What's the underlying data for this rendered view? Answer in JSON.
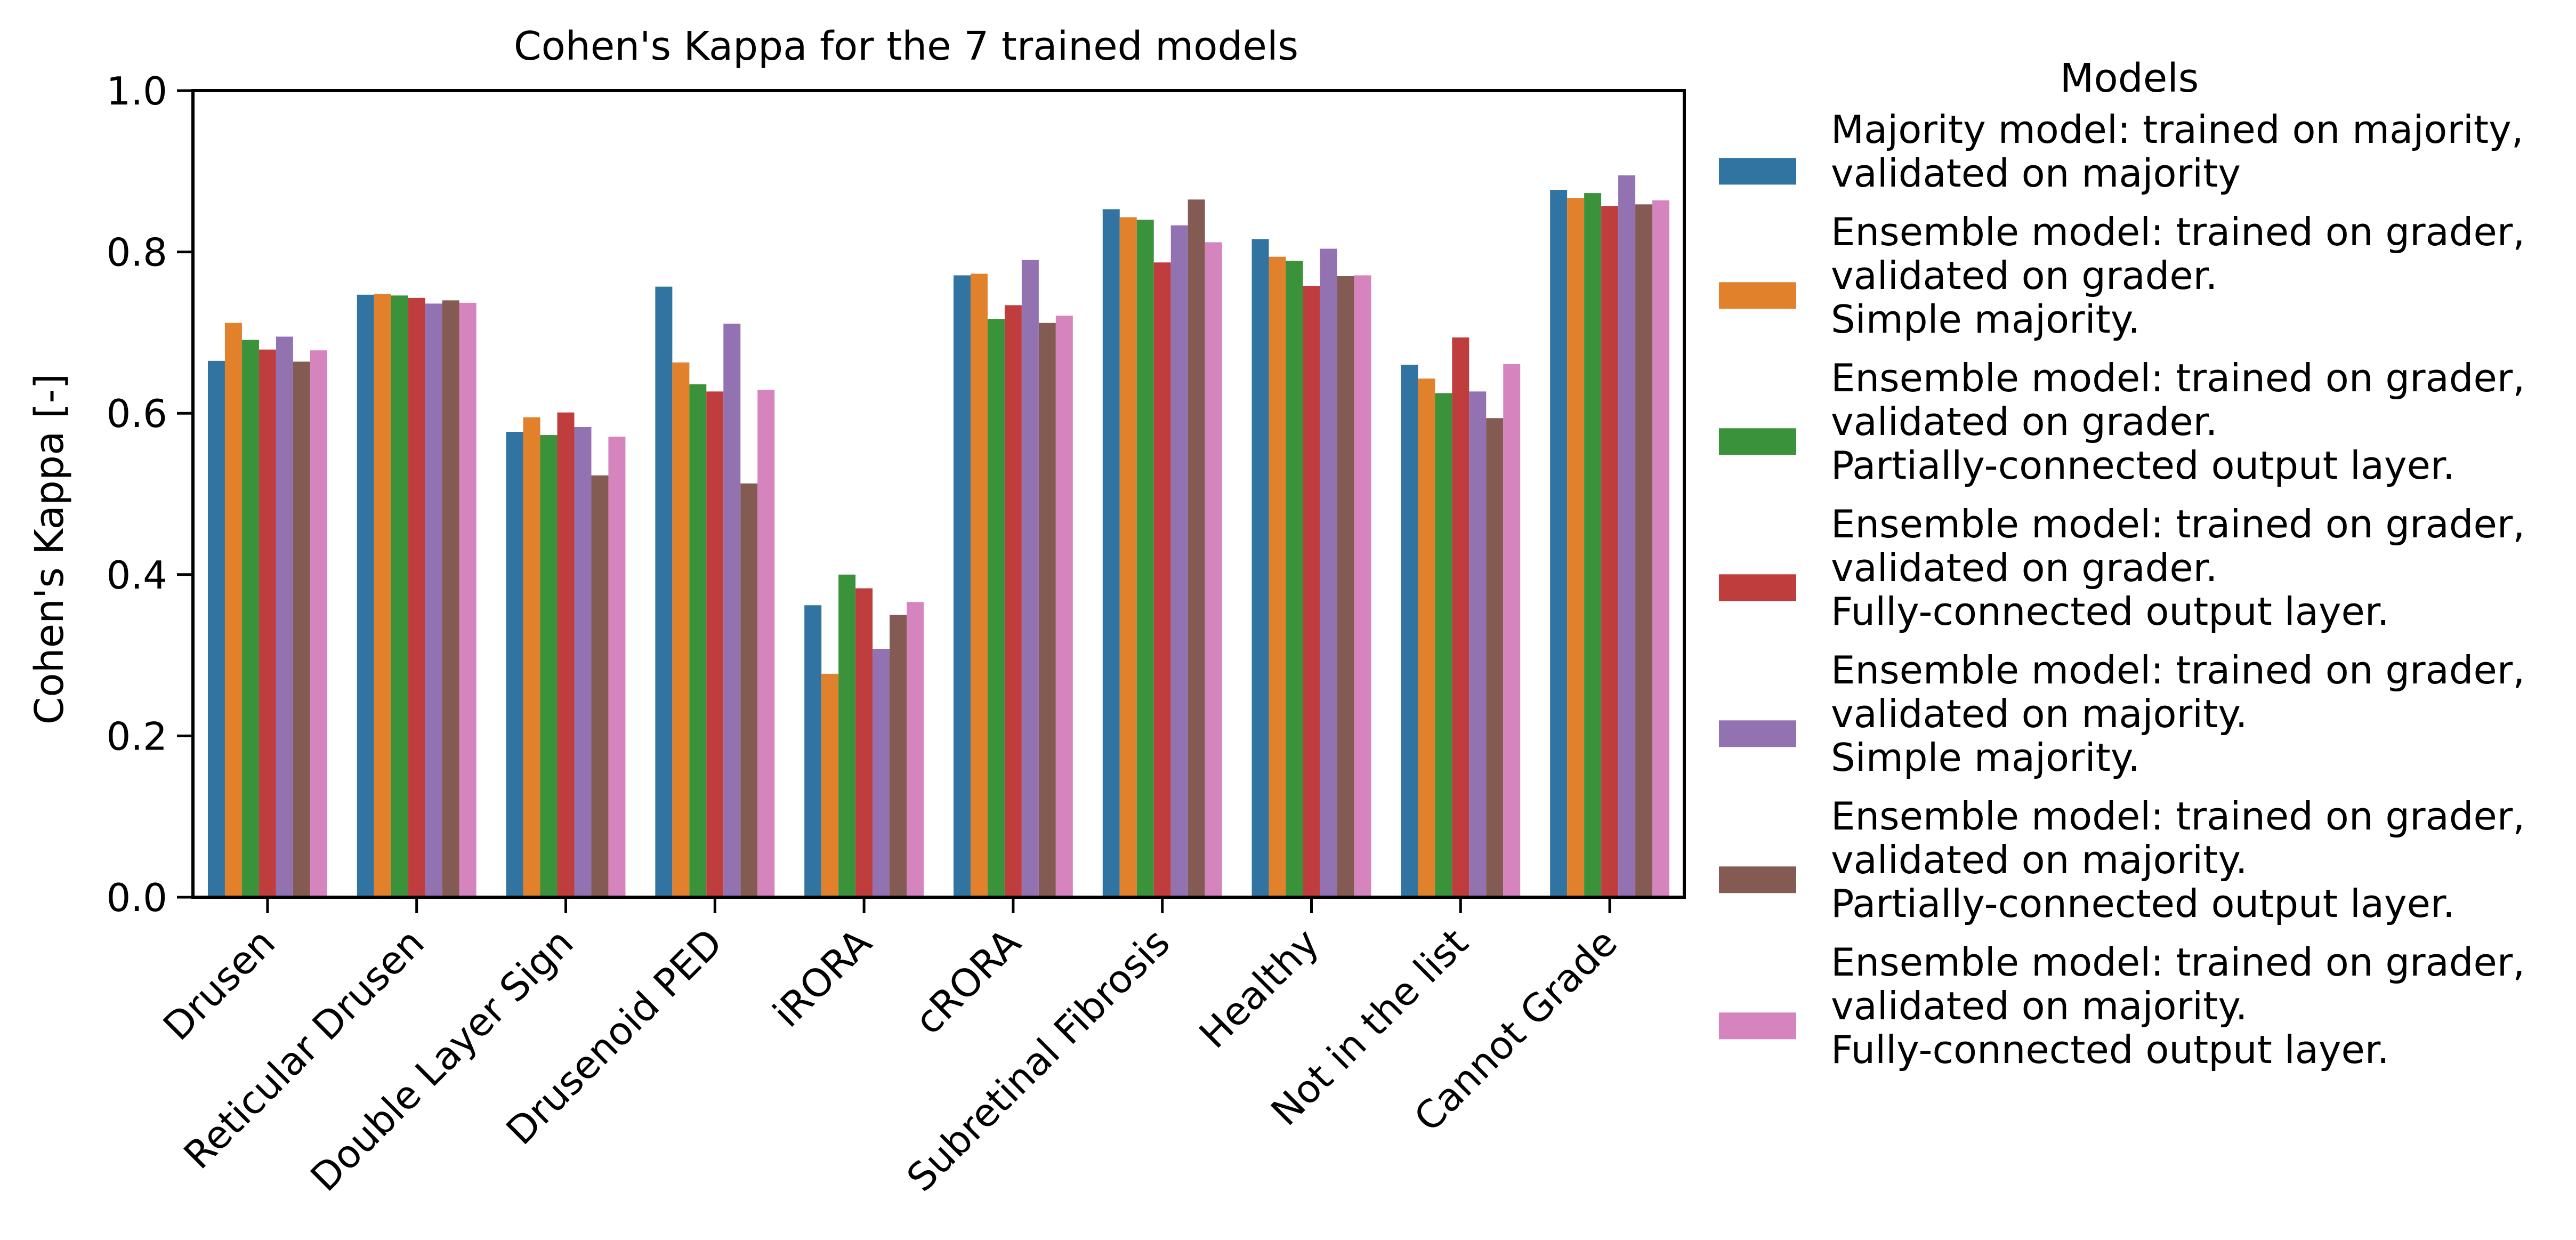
{
  "chart_data": {
    "type": "bar",
    "title": "Cohen's Kappa for the 7 trained models",
    "xlabel": "",
    "ylabel": "Cohen's Kappa [-]",
    "ylim": [
      0,
      1.0
    ],
    "yticks": [
      "0.0",
      "0.2",
      "0.4",
      "0.6",
      "0.8",
      "1.0"
    ],
    "grid": false,
    "categories": [
      "Drusen",
      "Reticular Drusen",
      "Double Layer Sign",
      "Drusenoid PED",
      "iRORA",
      "cRORA",
      "Subretinal Fibrosis",
      "Healthy",
      "Not in the list",
      "Cannot Grade"
    ],
    "legend": {
      "title": "Models",
      "placement": "outside-right"
    },
    "series": [
      {
        "name": "Majority model: trained on majority, validated on majority",
        "lines": [
          "Majority model: trained on majority,",
          "validated on majority"
        ],
        "color": "#3274a1",
        "values": [
          0.665,
          0.747,
          0.577,
          0.757,
          0.362,
          0.771,
          0.853,
          0.816,
          0.66,
          0.877
        ]
      },
      {
        "name": "Ensemble model: trained on grader, validated on grader. Simple majority.",
        "lines": [
          "Ensemble model: trained on grader,",
          "validated on grader.",
          "Simple majority."
        ],
        "color": "#e1812c",
        "values": [
          0.712,
          0.748,
          0.595,
          0.663,
          0.277,
          0.773,
          0.843,
          0.794,
          0.643,
          0.867
        ]
      },
      {
        "name": "Ensemble model: trained on grader, validated on grader. Partially-connected output layer.",
        "lines": [
          "Ensemble model: trained on grader,",
          "validated on grader.",
          "Partially-connected output layer."
        ],
        "color": "#3a923a",
        "values": [
          0.691,
          0.746,
          0.573,
          0.636,
          0.4,
          0.717,
          0.84,
          0.789,
          0.625,
          0.873
        ]
      },
      {
        "name": "Ensemble model: trained on grader, validated on grader. Fully-connected output layer.",
        "lines": [
          "Ensemble model: trained on grader,",
          "validated on grader.",
          "Fully-connected output layer."
        ],
        "color": "#c03d3e",
        "values": [
          0.679,
          0.743,
          0.601,
          0.627,
          0.383,
          0.734,
          0.787,
          0.758,
          0.694,
          0.857
        ]
      },
      {
        "name": "Ensemble model: trained on grader, validated on majority. Simple majority.",
        "lines": [
          "Ensemble model: trained on grader,",
          "validated on majority.",
          "Simple majority."
        ],
        "color": "#9372b2",
        "values": [
          0.695,
          0.736,
          0.583,
          0.711,
          0.308,
          0.79,
          0.833,
          0.804,
          0.627,
          0.895
        ]
      },
      {
        "name": "Ensemble model: trained on grader, validated on majority. Partially-connected output layer.",
        "lines": [
          "Ensemble model: trained on grader,",
          "validated on majority.",
          "Partially-connected output layer."
        ],
        "color": "#845b53",
        "values": [
          0.664,
          0.74,
          0.523,
          0.513,
          0.35,
          0.712,
          0.865,
          0.77,
          0.594,
          0.859
        ]
      },
      {
        "name": "Ensemble model: trained on grader, validated on majority. Fully-connected output layer.",
        "lines": [
          "Ensemble model: trained on grader,",
          "validated on majority.",
          "Fully-connected output layer."
        ],
        "color": "#d684bd",
        "values": [
          0.678,
          0.737,
          0.571,
          0.629,
          0.366,
          0.721,
          0.812,
          0.771,
          0.661,
          0.864
        ]
      }
    ]
  }
}
